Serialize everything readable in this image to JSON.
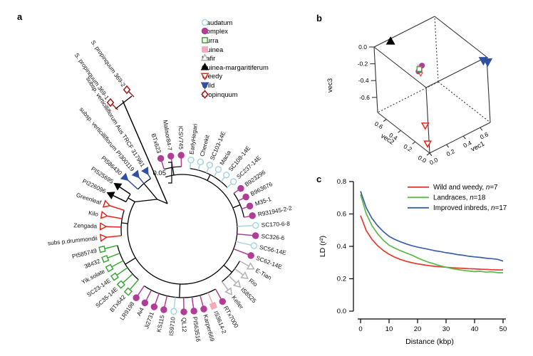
{
  "figure": {
    "panel_labels": {
      "a": "a",
      "b": "b",
      "c": "c"
    }
  },
  "groups": {
    "Caudatum": {
      "color": "#a7d4e4",
      "marker": "circle",
      "filled": false
    },
    "Complex": {
      "color": "#b13e96",
      "marker": "circle",
      "filled": true
    },
    "Durra": {
      "color": "#3ea63a",
      "marker": "square",
      "filled": false
    },
    "Guinea": {
      "color": "#f5a9b8",
      "marker": "square",
      "filled": true
    },
    "Kafir": {
      "color": "#b1b1b1",
      "marker": "triangle-up",
      "filled": false
    },
    "Guinea-margaritiferum": {
      "color": "#000000",
      "marker": "triangle-up",
      "filled": true
    },
    "Weedy": {
      "color": "#e8251d",
      "marker": "triangle-down",
      "filled": false
    },
    "Wild": {
      "color": "#31519f",
      "marker": "triangle-down",
      "filled": true
    },
    "Propinquum": {
      "color": "#9c1a18",
      "marker": "diamond",
      "filled": false
    }
  },
  "legend_a": {
    "items": [
      {
        "label": "Caudatum",
        "group": "Caudatum"
      },
      {
        "label": "Complex",
        "group": "Complex"
      },
      {
        "label": "Durra",
        "group": "Durra"
      },
      {
        "label": "Guinea",
        "group": "Guinea"
      },
      {
        "label": "Kafir",
        "group": "Kafir"
      },
      {
        "label": "Guinea-margaritiferum",
        "group": "Guinea-margaritiferum"
      },
      {
        "label": "Weedy",
        "group": "Weedy"
      },
      {
        "label": "Wild",
        "group": "Wild"
      },
      {
        "label": "Propinquum",
        "group": "Propinquum"
      }
    ]
  },
  "chart_data": [
    {
      "id": "circular-phylogeny",
      "type": "circular_dendrogram",
      "scale_bar": "0.05",
      "leaves": [
        {
          "label": "BTx623",
          "group": "Complex",
          "angle": -17,
          "tip_r": 104
        },
        {
          "label": "Malisor84-7",
          "group": "Complex",
          "angle": -9,
          "tip_r": 104
        },
        {
          "label": "ICSV745",
          "group": "Complex",
          "angle": -1,
          "tip_r": 104
        },
        {
          "label": "EarlyHegari",
          "group": "Caudatum",
          "angle": 7,
          "tip_r": 98
        },
        {
          "label": "Cherekit",
          "group": "Caudatum",
          "angle": 15,
          "tip_r": 98
        },
        {
          "label": "SC103-14E",
          "group": "Caudatum",
          "angle": 23,
          "tip_r": 98
        },
        {
          "label": "Macia",
          "group": "Caudatum",
          "angle": 31,
          "tip_r": 98
        },
        {
          "label": "SC108-14E",
          "group": "Caudatum",
          "angle": 39,
          "tip_r": 98
        },
        {
          "label": "SC237-14E",
          "group": "Caudatum",
          "angle": 47,
          "tip_r": 98
        },
        {
          "label": "B923296",
          "group": "Complex",
          "angle": 55,
          "tip_r": 100
        },
        {
          "label": "B963676",
          "group": "Complex",
          "angle": 63,
          "tip_r": 100
        },
        {
          "label": "M35-1",
          "group": "Complex",
          "angle": 71,
          "tip_r": 100
        },
        {
          "label": "R931945-2-2",
          "group": "Complex",
          "angle": 79,
          "tip_r": 100
        },
        {
          "label": "SC170-6-8",
          "group": "Caudatum",
          "angle": 87,
          "tip_r": 103
        },
        {
          "label": "SC326-6",
          "group": "Complex",
          "angle": 95,
          "tip_r": 103
        },
        {
          "label": "SC56-14E",
          "group": "Caudatum",
          "angle": 103,
          "tip_r": 103
        },
        {
          "label": "SC62-14E",
          "group": "Complex",
          "angle": 111,
          "tip_r": 103
        },
        {
          "label": "E-Tian",
          "group": "Kafir",
          "angle": 119,
          "tip_r": 110
        },
        {
          "label": "Rio",
          "group": "Kafir",
          "angle": 127,
          "tip_r": 110
        },
        {
          "label": "IS8525",
          "group": "Kafir",
          "angle": 135,
          "tip_r": 110
        },
        {
          "label": "Keller",
          "group": "Kafir",
          "angle": 143,
          "tip_r": 110
        },
        {
          "label": "RTx7000",
          "group": "Complex",
          "angle": 151,
          "tip_r": 116
        },
        {
          "label": "IS3614-2",
          "group": "Guinea",
          "angle": 158,
          "tip_r": 116
        },
        {
          "label": "Karper669",
          "group": "Complex",
          "angle": 165,
          "tip_r": 116
        },
        {
          "label": "PI563516",
          "group": "Complex",
          "angle": 172,
          "tip_r": 116
        },
        {
          "label": "QL12",
          "group": "Complex",
          "angle": 179,
          "tip_r": 116
        },
        {
          "label": "IS9710",
          "group": "Caudatum",
          "angle": 186,
          "tip_r": 116
        },
        {
          "label": "KS115",
          "group": "Complex",
          "angle": 193,
          "tip_r": 116
        },
        {
          "label": "Ji2731",
          "group": "Complex",
          "angle": 200,
          "tip_r": 116
        },
        {
          "label": "Ai4",
          "group": "Complex",
          "angle": 207,
          "tip_r": 116
        },
        {
          "label": "LR9198",
          "group": "Complex",
          "angle": 214,
          "tip_r": 116
        },
        {
          "label": "BTx642",
          "group": "Durra",
          "angle": 221,
          "tip_r": 116
        },
        {
          "label": "SC35-14E",
          "group": "Durra",
          "angle": 228,
          "tip_r": 116
        },
        {
          "label": "SC23-14E",
          "group": "Durra",
          "angle": 235,
          "tip_r": 116
        },
        {
          "label": "Yik.solate",
          "group": "Durra",
          "angle": 242,
          "tip_r": 116
        },
        {
          "label": "38432",
          "group": "Durra",
          "angle": 249,
          "tip_r": 116
        },
        {
          "label": "PI585749",
          "group": "Durra",
          "angle": 256,
          "tip_r": 116
        },
        {
          "label": "subs p.drummondii",
          "group": "Weedy",
          "angle": 264,
          "tip_r": 112
        },
        {
          "label": "Zengada",
          "group": "Weedy",
          "angle": 272,
          "tip_r": 112
        },
        {
          "label": "Kilo",
          "group": "Weedy",
          "angle": 280,
          "tip_r": 112
        },
        {
          "label": "Greenleaf",
          "group": "Weedy",
          "angle": 288,
          "tip_r": 112
        },
        {
          "label": "PI226096",
          "group": "Guinea-margaritiferum",
          "angle": 296,
          "tip_r": 112
        },
        {
          "label": "PI525695",
          "group": "Guinea-margaritiferum",
          "angle": 304,
          "tip_r": 110
        },
        {
          "label": "PI586430",
          "group": "Wild",
          "angle": 312,
          "tip_r": 108
        },
        {
          "label": "subsp. verticilliflorum PI300119",
          "group": "Wild",
          "angle": 320,
          "tip_r": 100
        },
        {
          "label": "subsp. verticilliflorum Aus TRCF 317961",
          "group": "Wild",
          "angle": 328,
          "tip_r": 96
        }
      ],
      "clades": [
        {
          "from": 0,
          "to": 2,
          "arc_r": 88
        },
        {
          "from": 3,
          "to": 8,
          "arc_r": 86
        },
        {
          "from": 9,
          "to": 12,
          "arc_r": 88
        },
        {
          "from": 17,
          "to": 20,
          "arc_r": 92
        },
        {
          "from": 21,
          "to": 30,
          "arc_r": 96
        },
        {
          "from": 31,
          "to": 36,
          "arc_r": 94
        },
        {
          "from": 37,
          "to": 40,
          "arc_r": 86
        },
        {
          "from": 41,
          "to": 42,
          "arc_r": 88
        },
        {
          "from": 43,
          "to": 45,
          "arc_r": 84,
          "join_r": 55,
          "join_angle": 320
        }
      ],
      "outgroup_tips": [
        {
          "label": "S. propinquum 369-1",
          "group": "Propinquum",
          "x": 155,
          "y": 144
        },
        {
          "label": "S. propinquum 369-2",
          "group": "Propinquum",
          "x": 178,
          "y": 126
        }
      ]
    },
    {
      "id": "pca-3d",
      "type": "scatter3d",
      "axes": {
        "vec1": {
          "label": "vec1",
          "ticks": [
            "0.0",
            "0.2",
            "0.4",
            "0.6"
          ],
          "range": [
            0,
            0.72
          ]
        },
        "vec2": {
          "label": "vec2",
          "ticks": [
            "0.0",
            "0.2",
            "0.4",
            "0.6"
          ],
          "range": [
            0,
            0.72
          ]
        },
        "vec3": {
          "label": "vec3",
          "ticks": [
            "0.0",
            "-0.2",
            "-0.4",
            "-0.6"
          ],
          "range": [
            0,
            -0.78
          ]
        }
      },
      "points": [
        {
          "group": "Guinea-margaritiferum",
          "vec1": 0.17,
          "vec2": 0.69,
          "vec3": 0.0,
          "size": 1.1
        },
        {
          "group": "Wild",
          "vec1": 0.68,
          "vec2": 0.0,
          "vec3": -0.02,
          "size": 1.15
        },
        {
          "group": "Wild",
          "vec1": 0.72,
          "vec2": -0.01,
          "vec3": -0.05,
          "size": 1.15
        },
        {
          "group": "Guinea",
          "vec1": 0.26,
          "vec2": 0.4,
          "vec3": -0.16,
          "size": 0.9
        },
        {
          "group": "Complex",
          "vec1": 0.23,
          "vec2": 0.37,
          "vec3": -0.17,
          "size": 0.85
        },
        {
          "group": "Complex",
          "vec1": 0.25,
          "vec2": 0.41,
          "vec3": -0.21,
          "size": 0.85
        },
        {
          "group": "Complex",
          "vec1": 0.27,
          "vec2": 0.38,
          "vec3": -0.13,
          "size": 0.85
        },
        {
          "group": "Durra",
          "vec1": 0.245,
          "vec2": 0.39,
          "vec3": -0.165,
          "size": 0.9
        },
        {
          "group": "Weedy",
          "vec1": 0.25,
          "vec2": 0.38,
          "vec3": -0.22,
          "size": 0.6
        },
        {
          "group": "Weedy",
          "vec1": 0.03,
          "vec2": 0.08,
          "vec3": -0.52,
          "size": 1.0
        },
        {
          "group": "Weedy",
          "vec1": 0.03,
          "vec2": 0.06,
          "vec3": -0.72,
          "size": 1.0
        }
      ]
    },
    {
      "id": "ld-decay",
      "type": "line",
      "xlabel": "Distance (kbp)",
      "ylabel": "LD (r²)",
      "xlim": [
        0,
        50
      ],
      "ylim": [
        0,
        0.8
      ],
      "xticks": [
        "0",
        "10",
        "20",
        "30",
        "40",
        "50"
      ],
      "yticks": [
        "0.0",
        "0.2",
        "0.4",
        "0.6",
        "0.8"
      ],
      "x_step": 2,
      "legend_position": "top-right",
      "series": [
        {
          "name": "Wild and weedy, n=7",
          "color": "#e23b32",
          "values": [
            0.59,
            0.497,
            0.443,
            0.404,
            0.374,
            0.351,
            0.333,
            0.319,
            0.308,
            0.299,
            0.292,
            0.286,
            0.281,
            0.277,
            0.274,
            0.271,
            0.268,
            0.266,
            0.264,
            0.262,
            0.261,
            0.259,
            0.258,
            0.256,
            0.255,
            0.254
          ]
        },
        {
          "name": "Landraces, n=18",
          "color": "#5cb947",
          "values": [
            0.72,
            0.601,
            0.528,
            0.477,
            0.438,
            0.407,
            0.389,
            0.373,
            0.359,
            0.346,
            0.329,
            0.314,
            0.301,
            0.291,
            0.28,
            0.271,
            0.263,
            0.257,
            0.252,
            0.248,
            0.244,
            0.246,
            0.241,
            0.243,
            0.238,
            0.237
          ]
        },
        {
          "name": "Improved inbreds, n=17",
          "color": "#3b5fa9",
          "values": [
            0.74,
            0.638,
            0.573,
            0.527,
            0.491,
            0.462,
            0.443,
            0.428,
            0.415,
            0.404,
            0.395,
            0.388,
            0.381,
            0.373,
            0.368,
            0.361,
            0.356,
            0.349,
            0.345,
            0.339,
            0.335,
            0.332,
            0.327,
            0.324,
            0.32,
            0.309
          ]
        }
      ]
    }
  ]
}
